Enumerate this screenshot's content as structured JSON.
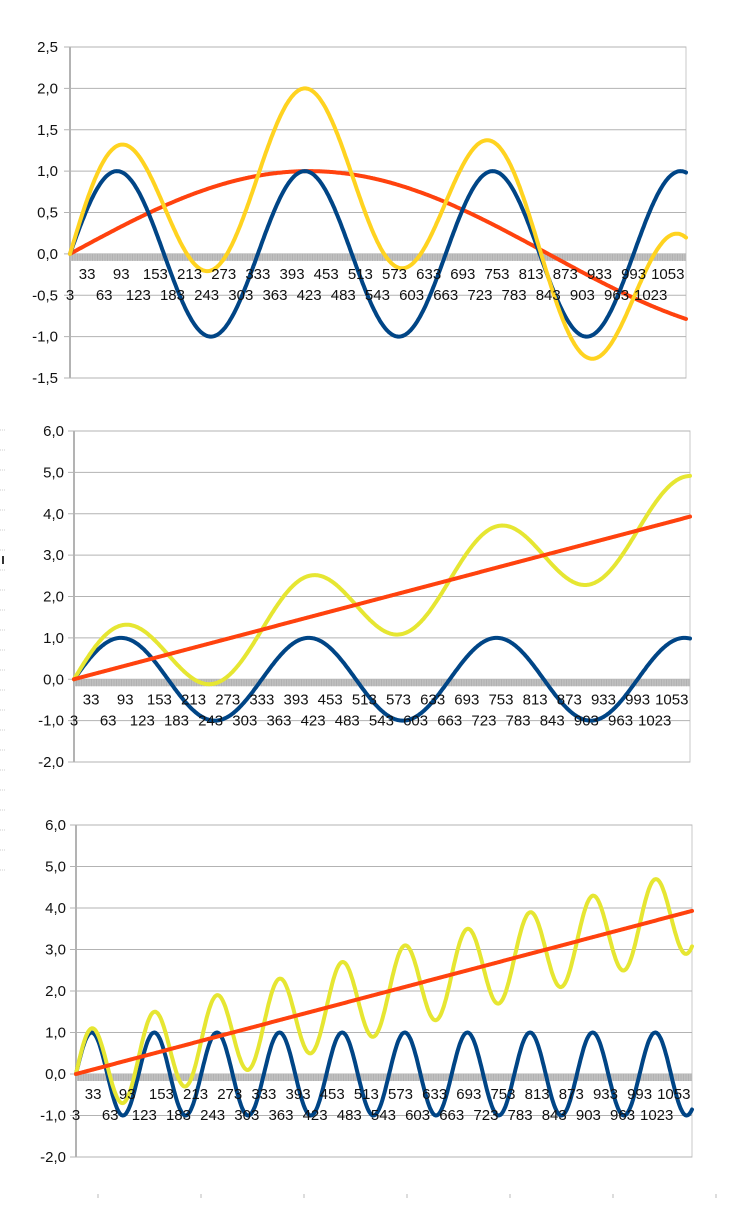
{
  "chart_data": [
    {
      "type": "line",
      "title": "",
      "xlabel": "",
      "ylabel": "",
      "ylim": [
        -1.5,
        2.5
      ],
      "ytick_step": 0.5,
      "ytick_labels": [
        "-1,5",
        "-1,0",
        "-0,5",
        "0,0",
        "0,5",
        "1,0",
        "1,5",
        "2,0",
        "2,5"
      ],
      "x_range": [
        3,
        1085
      ],
      "xtick_labels_row1": [
        "33",
        "93",
        "153",
        "213",
        "273",
        "333",
        "393",
        "453",
        "513",
        "573",
        "633",
        "693",
        "753",
        "813",
        "873",
        "933",
        "993",
        "1053"
      ],
      "xtick_labels_row2": [
        "3",
        "63",
        "123",
        "183",
        "243",
        "303",
        "363",
        "423",
        "483",
        "543",
        "603",
        "663",
        "723",
        "783",
        "843",
        "903",
        "963",
        "1023"
      ],
      "grid": true,
      "legend": "none",
      "series": [
        {
          "name": "blue",
          "color": "#004586",
          "formula": "sin(2*pi*(x-3)/330)",
          "amplitude": 1.0,
          "period": 330
        },
        {
          "name": "red",
          "color": "#ff420e",
          "formula": "sin(2*pi*(x-3)/1680)",
          "amplitude": 1.0,
          "period": 1680
        },
        {
          "name": "yellow",
          "color": "#ffd320",
          "formula": "blue + red"
        }
      ]
    },
    {
      "type": "line",
      "title": "",
      "xlabel": "",
      "ylabel": "",
      "ylim": [
        -2.0,
        6.0
      ],
      "ytick_step": 1.0,
      "ytick_labels": [
        "-2,0",
        "-1,0",
        "0,0",
        "1,0",
        "2,0",
        "3,0",
        "4,0",
        "5,0",
        "6,0"
      ],
      "x_range": [
        3,
        1085
      ],
      "xtick_labels_row1": [
        "33",
        "93",
        "153",
        "213",
        "273",
        "333",
        "393",
        "453",
        "513",
        "573",
        "633",
        "693",
        "753",
        "813",
        "873",
        "933",
        "993",
        "1053"
      ],
      "xtick_labels_row2": [
        "3",
        "63",
        "123",
        "183",
        "243",
        "303",
        "363",
        "423",
        "483",
        "543",
        "603",
        "663",
        "723",
        "783",
        "843",
        "903",
        "963",
        "1023"
      ],
      "grid": true,
      "legend": "none",
      "series": [
        {
          "name": "blue",
          "color": "#004586",
          "formula": "sin(2*pi*(x-3)/330)",
          "amplitude": 1.0,
          "period": 330
        },
        {
          "name": "red",
          "color": "#ff420e",
          "formula": "linear 0 -> 3.93",
          "start": 0.0,
          "end": 3.93
        },
        {
          "name": "yellow",
          "color": "#e6e632",
          "formula": "blue + red"
        }
      ]
    },
    {
      "type": "line",
      "title": "",
      "xlabel": "",
      "ylabel": "",
      "ylim": [
        -2.0,
        6.0
      ],
      "ytick_step": 1.0,
      "ytick_labels": [
        "-2,0",
        "-1,0",
        "0,0",
        "1,0",
        "2,0",
        "3,0",
        "4,0",
        "5,0",
        "6,0"
      ],
      "x_range": [
        3,
        1085
      ],
      "xtick_labels_row1": [
        "33",
        "93",
        "153",
        "213",
        "273",
        "333",
        "393",
        "453",
        "513",
        "573",
        "633",
        "693",
        "753",
        "813",
        "873",
        "933",
        "993",
        "1053"
      ],
      "xtick_labels_row2": [
        "3",
        "63",
        "123",
        "183",
        "243",
        "303",
        "363",
        "423",
        "483",
        "543",
        "603",
        "663",
        "723",
        "783",
        "843",
        "903",
        "963",
        "1023"
      ],
      "grid": true,
      "legend": "none",
      "series": [
        {
          "name": "blue",
          "color": "#004586",
          "formula": "sin(2*pi*(x-3)/110)",
          "amplitude": 1.0,
          "period": 110
        },
        {
          "name": "red",
          "color": "#ff420e",
          "formula": "linear 0 -> 3.93",
          "start": 0.0,
          "end": 3.93
        },
        {
          "name": "yellow",
          "color": "#e6e632",
          "formula": "blue + red"
        }
      ]
    }
  ]
}
